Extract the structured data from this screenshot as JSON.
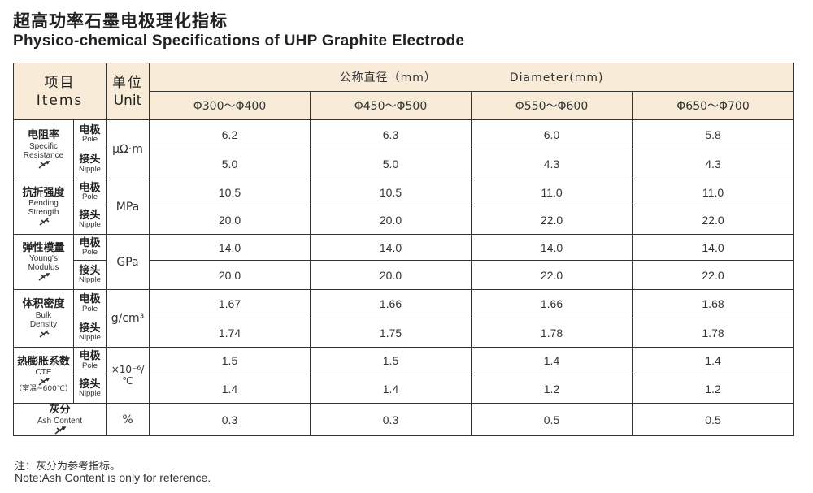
{
  "title_cn": "超高功率石墨电极理化指标",
  "title_en": "Physico-chemical Specifications of UHP Graphite Electrode",
  "header": {
    "items_cn": "项目",
    "items_en": "Items",
    "unit_cn": "单位",
    "unit_en": "Unit",
    "diameter_cn": "公称直径（mm）",
    "diameter_en": "Diameter(mm)",
    "ranges": [
      "Φ300～Φ400",
      "Φ450～Φ500",
      "Φ550～Φ600",
      "Φ650～Φ700"
    ]
  },
  "sub_labels": {
    "pole_cn": "电极",
    "pole_en": "Pole",
    "nipple_cn": "接头",
    "nipple_en": "Nipple"
  },
  "properties": [
    {
      "name_cn": "电阻率",
      "name_en_1": "Specific",
      "name_en_2": "Resistance",
      "unit": "μΩ·m",
      "pole": [
        "6.2",
        "6.3",
        "6.0",
        "5.8"
      ],
      "nipple": [
        "5.0",
        "5.0",
        "4.3",
        "4.3"
      ]
    },
    {
      "name_cn": "抗折强度",
      "name_en_1": "Bending",
      "name_en_2": "Strength",
      "unit": "MPa",
      "pole": [
        "10.5",
        "10.5",
        "11.0",
        "11.0"
      ],
      "nipple": [
        "20.0",
        "20.0",
        "22.0",
        "22.0"
      ]
    },
    {
      "name_cn": "弹性模量",
      "name_en_1": "Young's",
      "name_en_2": "Modulus",
      "unit": "GPa",
      "pole": [
        "14.0",
        "14.0",
        "14.0",
        "14.0"
      ],
      "nipple": [
        "20.0",
        "20.0",
        "22.0",
        "22.0"
      ]
    },
    {
      "name_cn": "体积密度",
      "name_en_1": "Bulk",
      "name_en_2": "Density",
      "unit": "g/cm³",
      "pole": [
        "1.67",
        "1.66",
        "1.66",
        "1.68"
      ],
      "nipple": [
        "1.74",
        "1.75",
        "1.78",
        "1.78"
      ]
    },
    {
      "name_cn": "热膨胀系数",
      "name_en_1": "CTE",
      "name_en_2": "（室温~600℃）",
      "unit": "×10⁻⁶/℃",
      "pole": [
        "1.5",
        "1.5",
        "1.4",
        "1.4"
      ],
      "nipple": [
        "1.4",
        "1.4",
        "1.2",
        "1.2"
      ]
    }
  ],
  "ash": {
    "name_cn": "灰分",
    "name_en": "Ash Content",
    "unit": "%",
    "values": [
      "0.3",
      "0.3",
      "0.5",
      "0.5"
    ]
  },
  "note_cn": "注：灰分为参考指标。",
  "note_en": "Note:Ash Content is only for reference."
}
